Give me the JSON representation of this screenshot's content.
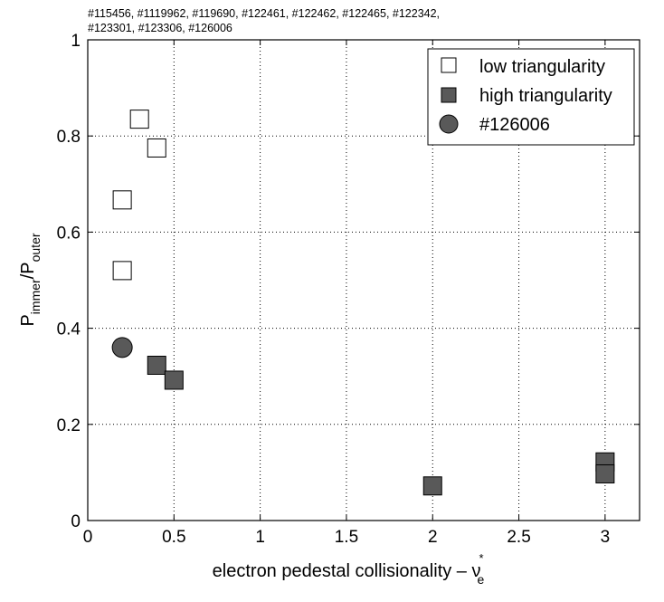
{
  "chart_data": {
    "type": "scatter",
    "title_lines": [
      "#115456, #1119962, #119690, #122461, #122462, #122465, #122342,",
      "#123301, #123306, #126006"
    ],
    "xlabel": {
      "main": "electron pedestal collisionality – ν",
      "sup": "*",
      "sub": "e"
    },
    "ylabel": {
      "p1": "P",
      "sub1": "immer",
      "slash": "/P",
      "sub2": "outer"
    },
    "xlim": [
      0,
      3.2
    ],
    "ylim": [
      0,
      1
    ],
    "xticks": [
      0,
      0.5,
      1,
      1.5,
      2,
      2.5,
      3
    ],
    "xtick_labels": [
      "0",
      "0.5",
      "1",
      "1.5",
      "2",
      "2.5",
      "3"
    ],
    "yticks": [
      0,
      0.2,
      0.4,
      0.6,
      0.8,
      1
    ],
    "ytick_labels": [
      "0",
      "0.2",
      "0.4",
      "0.6",
      "0.8",
      "1"
    ],
    "grid": true,
    "legend_position": "top-right",
    "series": [
      {
        "name": "low triangularity",
        "marker": "square",
        "color": "#ffffff",
        "x": [
          0.3,
          0.4,
          0.2,
          0.2
        ],
        "y": [
          0.835,
          0.775,
          0.667,
          0.52
        ]
      },
      {
        "name": "high triangularity",
        "marker": "square",
        "color": "#595959",
        "x": [
          0.4,
          0.5,
          2.0,
          3.0,
          3.0
        ],
        "y": [
          0.323,
          0.292,
          0.072,
          0.122,
          0.097
        ]
      },
      {
        "name": "#126006",
        "marker": "circle",
        "color": "#595959",
        "x": [
          0.2
        ],
        "y": [
          0.36
        ]
      }
    ]
  }
}
